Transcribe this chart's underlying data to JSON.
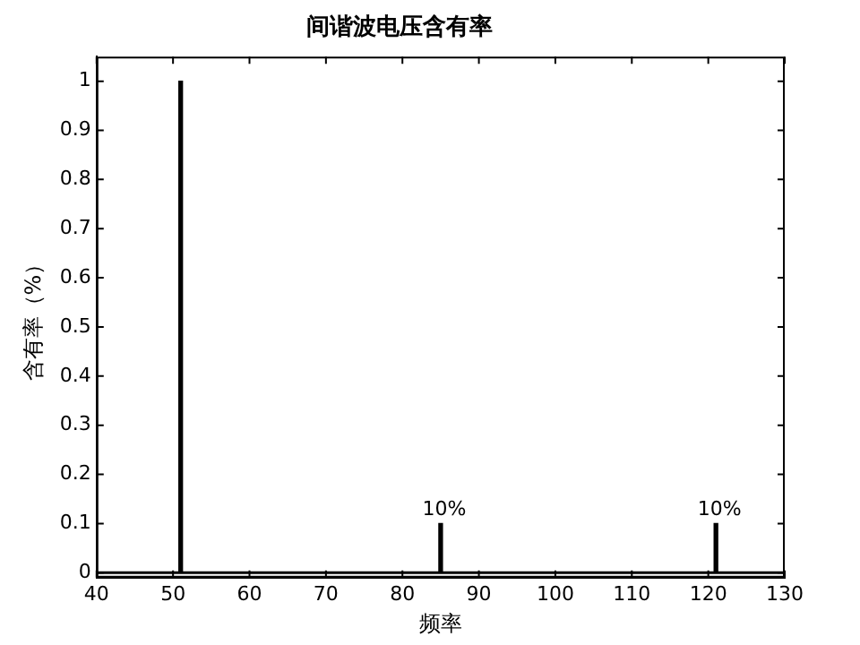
{
  "chart_data": {
    "type": "bar",
    "title": "间谐波电压含有率",
    "xlabel": "频率",
    "ylabel": "含有率（%）",
    "x": [
      51,
      85,
      121
    ],
    "values": [
      1,
      0.1,
      0.1
    ],
    "value_labels": [
      null,
      "10%",
      "10%"
    ],
    "color": "#000000",
    "xlim": [
      40,
      130
    ],
    "xticks": [
      40,
      50,
      60,
      70,
      80,
      90,
      100,
      110,
      120,
      130
    ],
    "ylim": [
      -0.01,
      1.05
    ],
    "yticks": [
      0,
      0.1,
      0.2,
      0.3,
      0.4,
      0.5,
      0.6,
      0.7,
      0.8,
      0.9,
      1
    ],
    "ref_lines": [
      {
        "axis": "y",
        "value": 0,
        "color": "#000000"
      }
    ],
    "grid": false,
    "legend": false
  }
}
